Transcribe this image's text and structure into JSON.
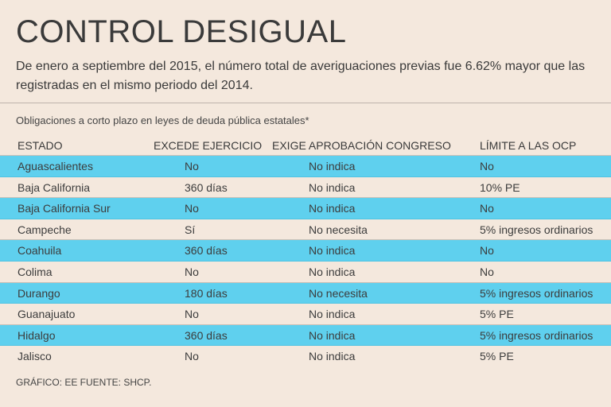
{
  "title": "CONTROL DESIGUAL",
  "subtitle": "De enero a septiembre del 2015, el número total de averiguaciones previas fue 6.62% mayor que las registradas en el mismo periodo del 2014.",
  "caption": "Obligaciones a corto plazo en leyes de deuda pública estatales*",
  "headers": [
    "ESTADO",
    "EXCEDE EJERCICIO",
    "EXIGE APROBACIÓN CONGRESO",
    "LÍMITE A LAS OCP"
  ],
  "rows": [
    [
      "Aguascalientes",
      "No",
      "No indica",
      "No"
    ],
    [
      "Baja California",
      "360 días",
      "No indica",
      "10% PE"
    ],
    [
      "Baja California Sur",
      "No",
      "No indica",
      "No"
    ],
    [
      "Campeche",
      "Sí",
      "No necesita",
      "5% ingresos ordinarios"
    ],
    [
      "Coahuila",
      "360 días",
      "No indica",
      "No"
    ],
    [
      "Colima",
      "No",
      "No indica",
      "No"
    ],
    [
      "Durango",
      "180 días",
      "No necesita",
      "5% ingresos ordinarios"
    ],
    [
      "Guanajuato",
      "No",
      "No indica",
      "5% PE"
    ],
    [
      "Hidalgo",
      " 360 días",
      "No indica",
      "5% ingresos ordinarios"
    ],
    [
      "Jalisco",
      "No",
      "No indica",
      "5% PE"
    ]
  ],
  "source": "GRÁFICO: EE  FUENTE: SHCP.",
  "colors": {
    "background": "#f4e8dd",
    "highlight": "#5fd0ee",
    "text": "#3c3c3c"
  }
}
